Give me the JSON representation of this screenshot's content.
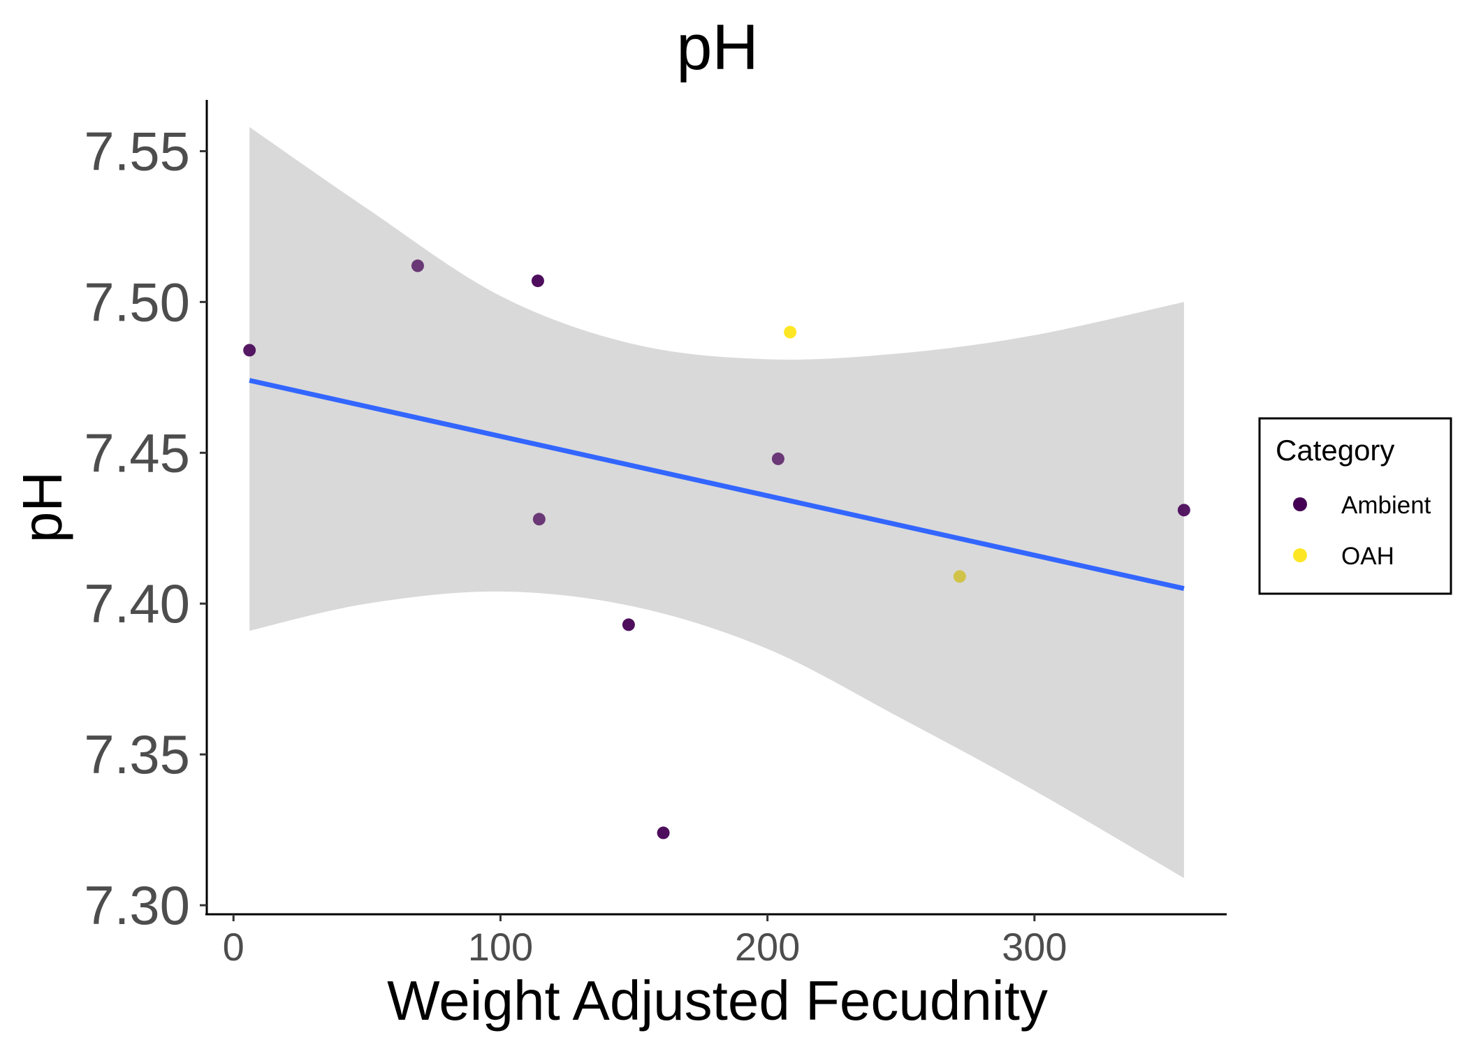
{
  "chart_data": {
    "type": "scatter",
    "title": "pH",
    "xlabel": "Weight Adjusted Fecudnity",
    "ylabel": "pH",
    "xlim": [
      -10,
      372
    ],
    "ylim": [
      7.297,
      7.567
    ],
    "xticks": [
      0,
      100,
      200,
      300
    ],
    "xtick_labels": [
      "0",
      "100",
      "200",
      "300"
    ],
    "yticks": [
      7.3,
      7.35,
      7.4,
      7.45,
      7.5,
      7.55
    ],
    "ytick_labels": [
      "7.30",
      "7.35",
      "7.40",
      "7.45",
      "7.50",
      "7.55"
    ],
    "grid": false,
    "legend": {
      "title": "Category",
      "placement": "right",
      "items": [
        {
          "label": "Ambient",
          "color": "#440154"
        },
        {
          "label": "OAH",
          "color": "#fde725"
        }
      ]
    },
    "points": [
      {
        "x": 6,
        "y": 7.484,
        "color": "#440154",
        "opacity": 0.9
      },
      {
        "x": 69,
        "y": 7.512,
        "color": "#440154",
        "opacity": 0.75
      },
      {
        "x": 114,
        "y": 7.507,
        "color": "#440154",
        "opacity": 0.95
      },
      {
        "x": 114.5,
        "y": 7.428,
        "color": "#440154",
        "opacity": 0.75
      },
      {
        "x": 148,
        "y": 7.393,
        "color": "#440154",
        "opacity": 0.95
      },
      {
        "x": 161,
        "y": 7.324,
        "color": "#440154",
        "opacity": 0.95
      },
      {
        "x": 204,
        "y": 7.448,
        "color": "#440154",
        "opacity": 0.75
      },
      {
        "x": 208.5,
        "y": 7.49,
        "color": "#fde725",
        "opacity": 1.0
      },
      {
        "x": 272,
        "y": 7.409,
        "color": "#cfc03a",
        "opacity": 0.9
      },
      {
        "x": 356,
        "y": 7.431,
        "color": "#440154",
        "opacity": 0.9
      }
    ],
    "fit_line": {
      "color": "#3366ff",
      "x": [
        6,
        356
      ],
      "y": [
        7.474,
        7.405
      ]
    },
    "confidence_band": {
      "color": "#d9d9d9",
      "x": [
        6,
        50,
        100,
        150,
        200,
        250,
        300,
        356
      ],
      "upper": [
        7.558,
        7.531,
        7.502,
        7.486,
        7.481,
        7.483,
        7.489,
        7.5
      ],
      "lower": [
        7.391,
        7.4,
        7.404,
        7.399,
        7.385,
        7.362,
        7.338,
        7.309
      ]
    }
  }
}
